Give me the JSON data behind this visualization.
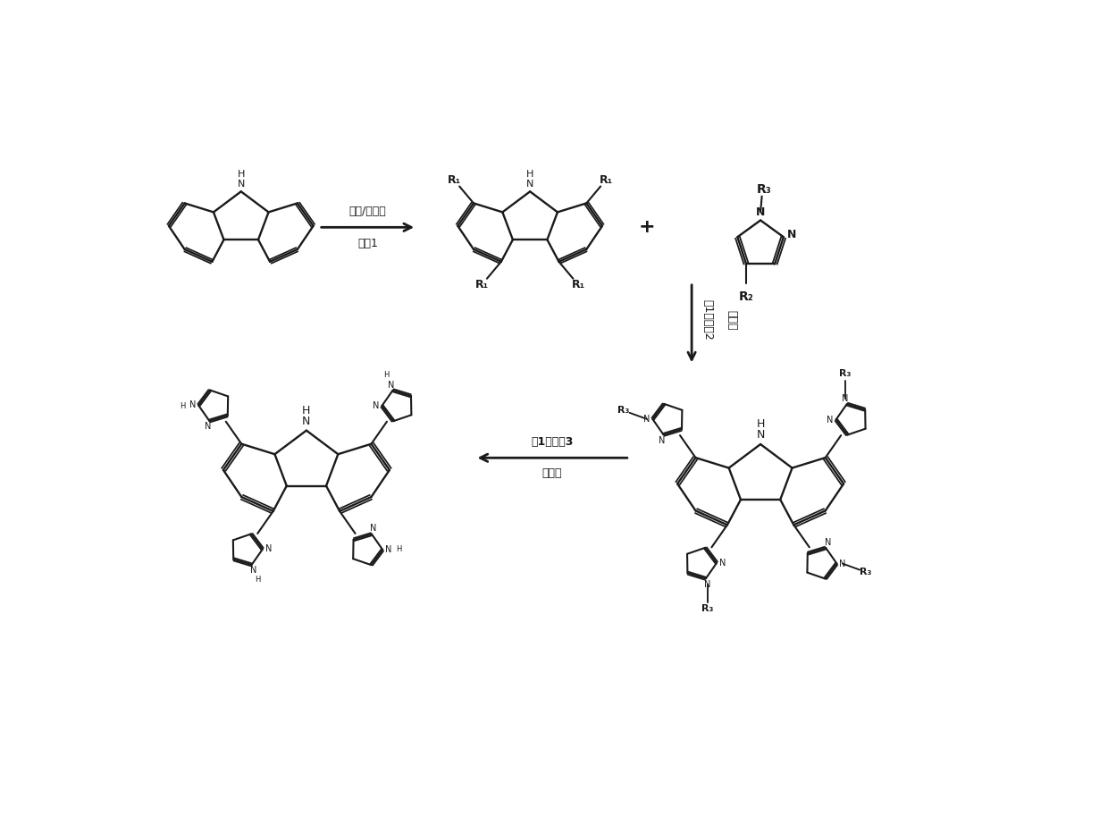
{
  "background": "#ffffff",
  "line_color": "#1a1a1a",
  "step1_top": "卤素/催化剂",
  "step1_bot": "溶剂1",
  "step2_right1": "碱1、溶剂2",
  "step2_right2": "催化剂",
  "step3_top": "酸1、溶剂3",
  "step3_bot": "脱保护",
  "figw": 12.4,
  "figh": 9.13,
  "dpi": 100
}
